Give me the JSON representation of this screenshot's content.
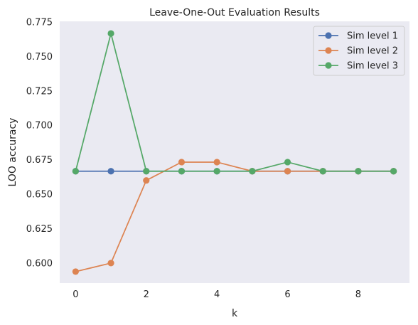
{
  "chart_data": {
    "type": "line",
    "title": "Leave-One-Out Evaluation Results",
    "xlabel": "k",
    "ylabel": "LOO accuracy",
    "x": [
      0,
      1,
      2,
      3,
      4,
      5,
      6,
      7,
      8,
      9
    ],
    "xticks": [
      "0",
      "2",
      "4",
      "6",
      "8"
    ],
    "yticks": [
      "0.600",
      "0.625",
      "0.650",
      "0.675",
      "0.700",
      "0.725",
      "0.750",
      "0.775"
    ],
    "xlim": [
      -0.45,
      9.45
    ],
    "ylim": [
      0.5855,
      0.7755
    ],
    "grid": false,
    "legend_position": "top-right",
    "series": [
      {
        "name": "Sim level 1",
        "color": "#4c72b0",
        "values": [
          0.6667,
          0.6667,
          0.6667,
          0.6667,
          0.6667,
          0.6667,
          0.6667,
          0.6667,
          0.6667,
          0.6667
        ]
      },
      {
        "name": "Sim level 2",
        "color": "#dd8452",
        "values": [
          0.5938,
          0.6,
          0.66,
          0.6733,
          0.6733,
          0.6667,
          0.6667,
          0.6667,
          0.6667,
          0.6667
        ]
      },
      {
        "name": "Sim level 3",
        "color": "#55a868",
        "values": [
          0.6667,
          0.7667,
          0.6667,
          0.6667,
          0.6667,
          0.6667,
          0.6733,
          0.6667,
          0.6667,
          0.6667
        ]
      }
    ]
  },
  "colors": {
    "plot_background": "#eaeaf2",
    "text": "#262626"
  }
}
